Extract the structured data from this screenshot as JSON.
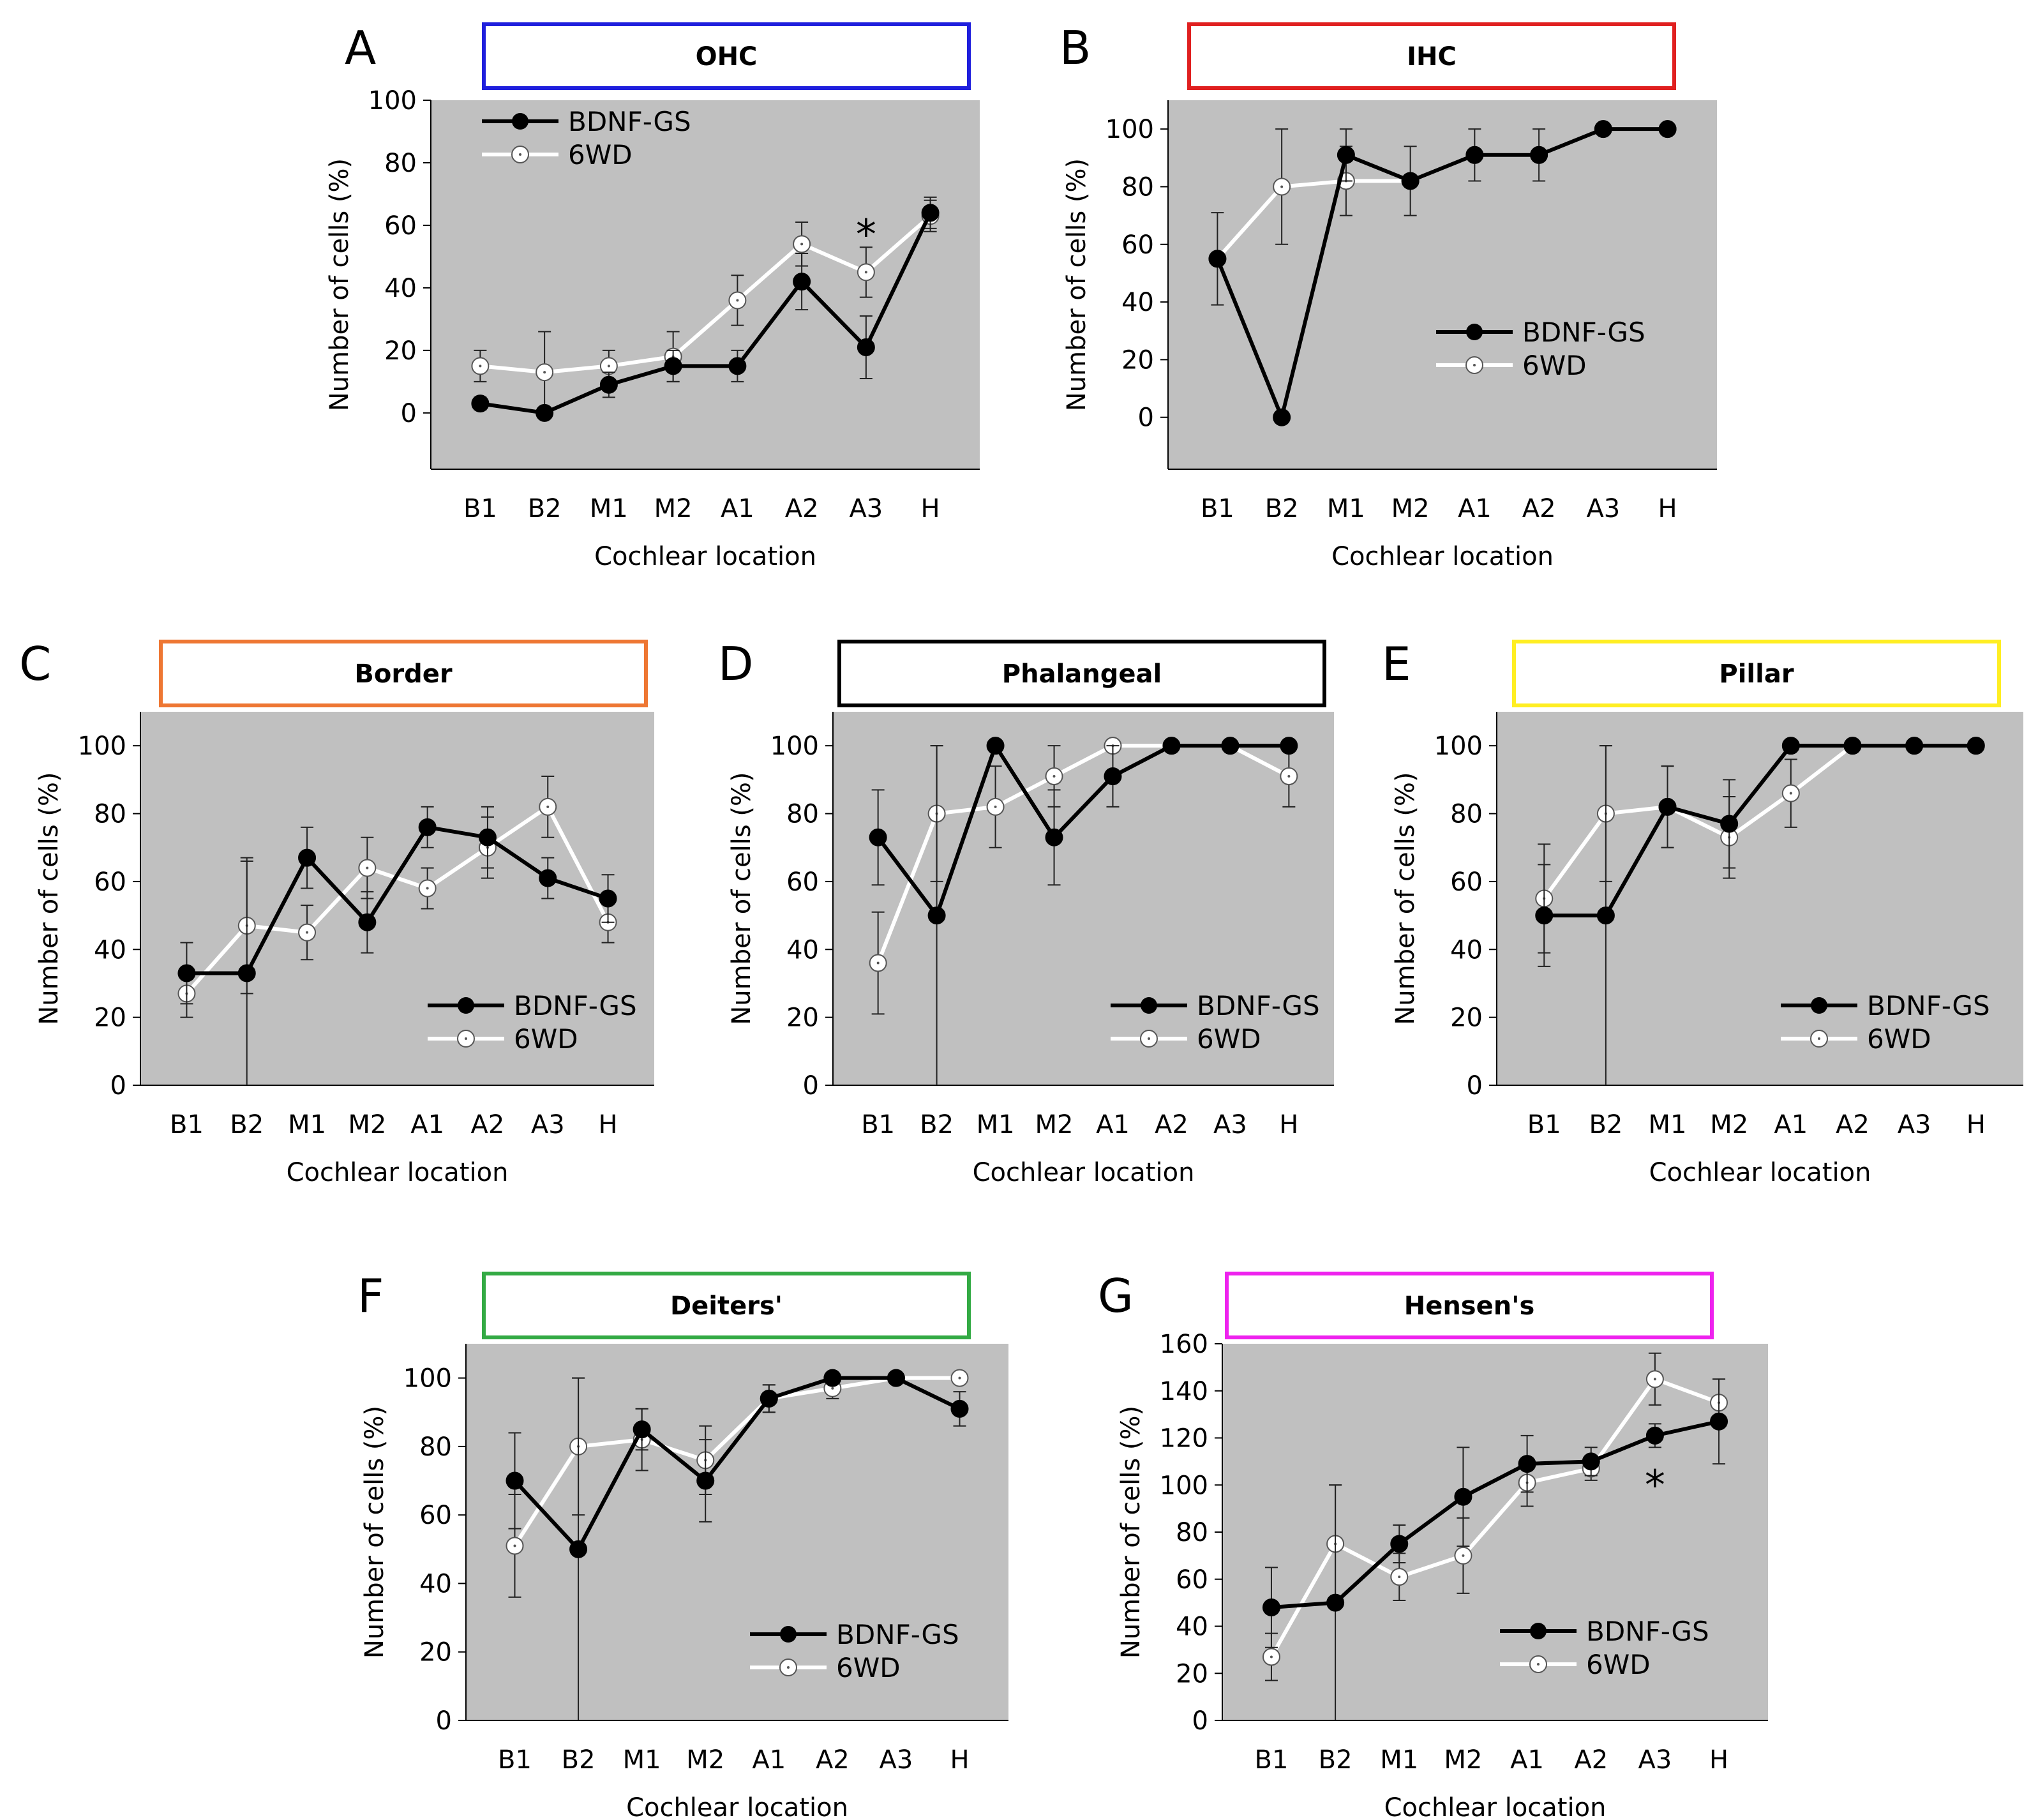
{
  "figure": {
    "xlabel": "Cochlear location",
    "ylabel": "Number of cells (%)",
    "categories": [
      "B1",
      "B2",
      "M1",
      "M2",
      "A1",
      "A2",
      "A3",
      "H"
    ],
    "plot_bg": "#c0c0c0",
    "series_colors": {
      "BDNF-GS": "#000000",
      "6WD": "#ffffff"
    }
  },
  "chart_data": [
    {
      "type": "line",
      "letter": "A",
      "title": "OHC",
      "title_color": "#1f1fdd",
      "categories": [
        "B1",
        "B2",
        "M1",
        "M2",
        "A1",
        "A2",
        "A3",
        "H"
      ],
      "xlabel": "Cochlear location",
      "ylabel": "Number of cells (%)",
      "ylim": [
        -18,
        100
      ],
      "yticks": [
        0,
        20,
        40,
        60,
        80,
        100
      ],
      "legend": "top-left",
      "series": [
        {
          "name": "BDNF-GS",
          "values": [
            3,
            0,
            9,
            15,
            15,
            42,
            21,
            64
          ],
          "errors": [
            2,
            0,
            4,
            5,
            5,
            9,
            10,
            5
          ]
        },
        {
          "name": "6WD",
          "values": [
            15,
            13,
            15,
            18,
            36,
            54,
            45,
            63
          ],
          "errors": [
            5,
            13,
            5,
            8,
            8,
            7,
            8,
            5
          ]
        }
      ],
      "annotations": [
        {
          "text": "*",
          "category": "A3",
          "value": 57
        }
      ]
    },
    {
      "type": "line",
      "letter": "B",
      "title": "IHC",
      "title_color": "#e02020",
      "categories": [
        "B1",
        "B2",
        "M1",
        "M2",
        "A1",
        "A2",
        "A3",
        "H"
      ],
      "xlabel": "Cochlear location",
      "ylabel": "Number of cells (%)",
      "ylim": [
        -18,
        110
      ],
      "yticks": [
        0,
        20,
        40,
        60,
        80,
        100
      ],
      "legend": "bottom-right",
      "series": [
        {
          "name": "BDNF-GS",
          "values": [
            55,
            0,
            91,
            82,
            91,
            91,
            100,
            100
          ],
          "errors": [
            0,
            0,
            9,
            0,
            0,
            0,
            0,
            0
          ]
        },
        {
          "name": "6WD",
          "values": [
            55,
            80,
            82,
            82,
            91,
            91,
            100,
            100
          ],
          "errors": [
            16,
            20,
            12,
            12,
            9,
            9,
            0,
            0
          ]
        }
      ],
      "annotations": []
    },
    {
      "type": "line",
      "letter": "C",
      "title": "Border",
      "title_color": "#ee7733",
      "categories": [
        "B1",
        "B2",
        "M1",
        "M2",
        "A1",
        "A2",
        "A3",
        "H"
      ],
      "xlabel": "Cochlear location",
      "ylabel": "Number of cells (%)",
      "ylim": [
        0,
        110
      ],
      "yticks": [
        0,
        20,
        40,
        60,
        80,
        100
      ],
      "legend": "bottom-right",
      "series": [
        {
          "name": "BDNF-GS",
          "values": [
            33,
            33,
            67,
            48,
            76,
            73,
            61,
            55
          ],
          "errors": [
            9,
            33,
            9,
            9,
            6,
            9,
            6,
            7
          ]
        },
        {
          "name": "6WD",
          "values": [
            27,
            47,
            45,
            64,
            58,
            70,
            82,
            48
          ],
          "errors": [
            7,
            20,
            8,
            9,
            6,
            9,
            9,
            6
          ]
        }
      ],
      "annotations": []
    },
    {
      "type": "line",
      "letter": "D",
      "title": "Phalangeal",
      "title_color": "#000000",
      "categories": [
        "B1",
        "B2",
        "M1",
        "M2",
        "A1",
        "A2",
        "A3",
        "H"
      ],
      "xlabel": "Cochlear location",
      "ylabel": "Number of cells (%)",
      "ylim": [
        0,
        110
      ],
      "yticks": [
        0,
        20,
        40,
        60,
        80,
        100
      ],
      "legend": "bottom-right",
      "series": [
        {
          "name": "BDNF-GS",
          "values": [
            73,
            50,
            100,
            73,
            91,
            100,
            100,
            100
          ],
          "errors": [
            14,
            50,
            0,
            14,
            9,
            0,
            0,
            0
          ]
        },
        {
          "name": "6WD",
          "values": [
            36,
            80,
            82,
            91,
            100,
            100,
            100,
            91
          ],
          "errors": [
            15,
            20,
            12,
            9,
            0,
            0,
            0,
            9
          ]
        }
      ],
      "annotations": []
    },
    {
      "type": "line",
      "letter": "E",
      "title": "Pillar",
      "title_color": "#ffee22",
      "categories": [
        "B1",
        "B2",
        "M1",
        "M2",
        "A1",
        "A2",
        "A3",
        "H"
      ],
      "xlabel": "Cochlear location",
      "ylabel": "Number of cells (%)",
      "ylim": [
        0,
        110
      ],
      "yticks": [
        0,
        20,
        40,
        60,
        80,
        100
      ],
      "legend": "bottom-right",
      "series": [
        {
          "name": "BDNF-GS",
          "values": [
            50,
            50,
            82,
            77,
            100,
            100,
            100,
            100
          ],
          "errors": [
            15,
            50,
            12,
            13,
            0,
            0,
            0,
            0
          ]
        },
        {
          "name": "6WD",
          "values": [
            55,
            80,
            82,
            73,
            86,
            100,
            100,
            100
          ],
          "errors": [
            16,
            20,
            12,
            12,
            10,
            0,
            0,
            0
          ]
        }
      ],
      "annotations": []
    },
    {
      "type": "line",
      "letter": "F",
      "title": "Deiters'",
      "title_color": "#33aa44",
      "categories": [
        "B1",
        "B2",
        "M1",
        "M2",
        "A1",
        "A2",
        "A3",
        "H"
      ],
      "xlabel": "Cochlear location",
      "ylabel": "Number of cells (%)",
      "ylim": [
        0,
        110
      ],
      "yticks": [
        0,
        20,
        40,
        60,
        80,
        100
      ],
      "legend": "bottom-right",
      "series": [
        {
          "name": "BDNF-GS",
          "values": [
            70,
            50,
            85,
            70,
            94,
            100,
            100,
            91
          ],
          "errors": [
            14,
            50,
            6,
            12,
            4,
            0,
            0,
            5
          ]
        },
        {
          "name": "6WD",
          "values": [
            51,
            80,
            82,
            76,
            94,
            97,
            100,
            100
          ],
          "errors": [
            15,
            20,
            9,
            10,
            4,
            3,
            0,
            0
          ]
        }
      ],
      "annotations": []
    },
    {
      "type": "line",
      "letter": "G",
      "title": "Hensen's",
      "title_color": "#ee22ee",
      "categories": [
        "B1",
        "B2",
        "M1",
        "M2",
        "A1",
        "A2",
        "A3",
        "H"
      ],
      "xlabel": "Cochlear location",
      "ylabel": "Number of cells (%)",
      "ylim": [
        0,
        160
      ],
      "yticks": [
        0,
        20,
        40,
        60,
        80,
        100,
        120,
        140,
        160
      ],
      "legend": "bottom-right",
      "series": [
        {
          "name": "BDNF-GS",
          "values": [
            48,
            50,
            75,
            95,
            109,
            110,
            121,
            127
          ],
          "errors": [
            17,
            50,
            8,
            21,
            12,
            6,
            5,
            18
          ]
        },
        {
          "name": "6WD",
          "values": [
            27,
            75,
            61,
            70,
            101,
            107,
            145,
            135
          ],
          "errors": [
            10,
            25,
            10,
            16,
            10,
            5,
            11,
            10
          ]
        }
      ],
      "annotations": [
        {
          "text": "*",
          "category": "A3",
          "value": 100
        }
      ]
    }
  ]
}
